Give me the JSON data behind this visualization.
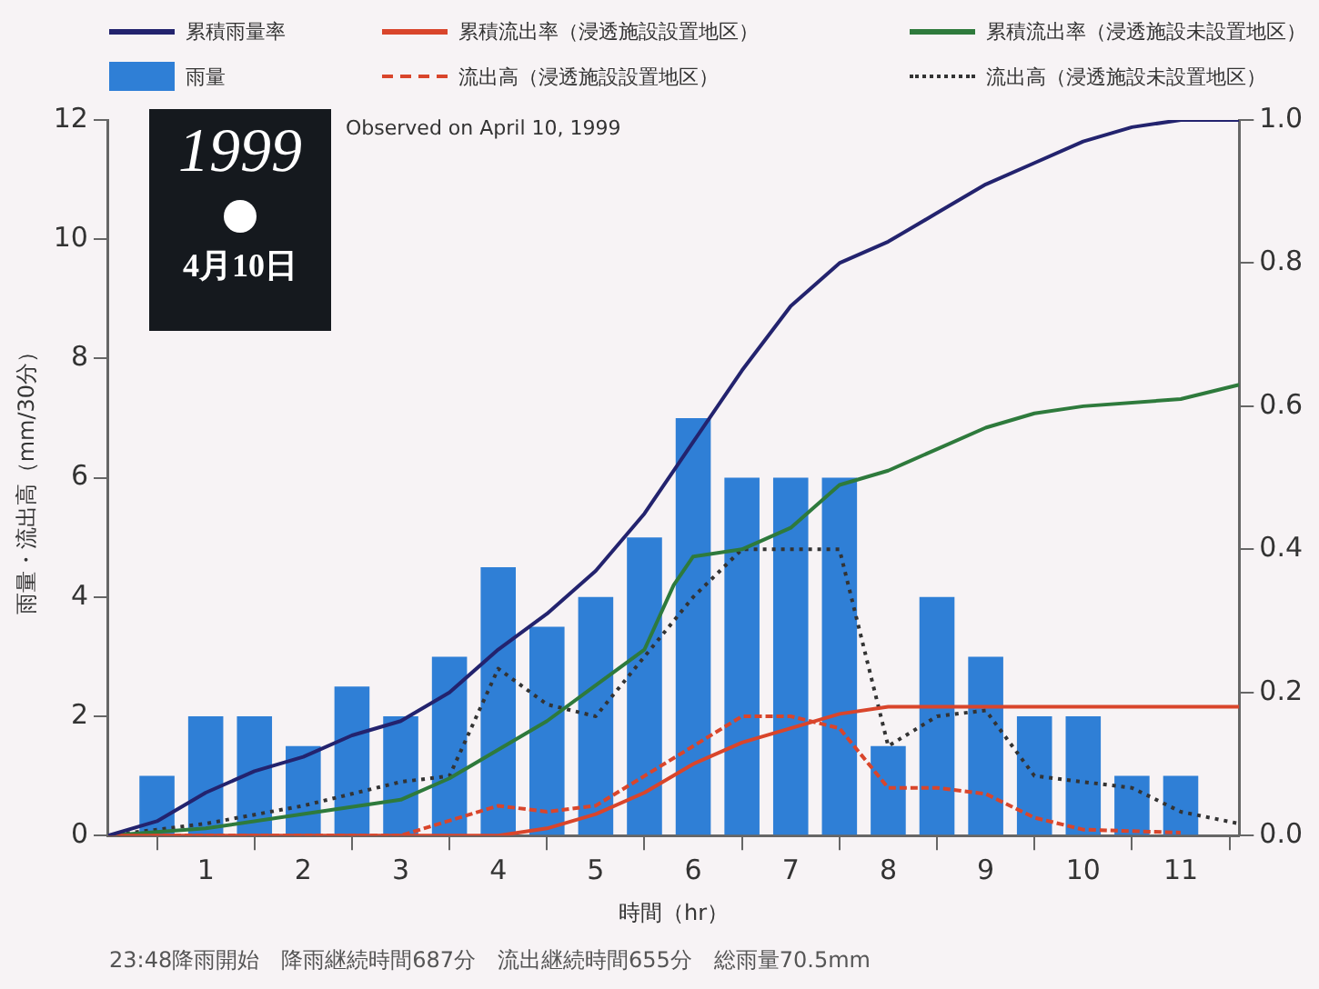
{
  "chart_data": {
    "type": "line",
    "xlabel": "時間（hr）",
    "ylabel": "雨量・流出高（mm/30分）",
    "annotations": [
      "1999",
      "4月10日",
      "Observed on April 10, 1999",
      "23:48降雨開始　降雨継続時間687分　流出継続時間655分　総雨量70.5mm"
    ],
    "xlim": [
      0,
      11.6
    ],
    "xticks": [
      1,
      2,
      3,
      4,
      5,
      6,
      7,
      8,
      9,
      10,
      11
    ],
    "ylim": [
      0,
      12
    ],
    "yticks": [
      0,
      2,
      4,
      6,
      8,
      10,
      12
    ],
    "y2lim": [
      0,
      1
    ],
    "y2ticks": [
      {
        "value": 0,
        "label": "0.0"
      },
      {
        "value": 0.2,
        "label": "0.2"
      },
      {
        "value": 0.4,
        "label": "0.4"
      },
      {
        "value": 0.6,
        "label": "0.6"
      },
      {
        "value": 0.8,
        "label": "0.8"
      },
      {
        "value": 1,
        "label": "1.0"
      }
    ],
    "grid": false,
    "legend": "top",
    "marker": "none",
    "series": [
      {
        "name": "累積雨量率",
        "axis": "y2",
        "color": "#23236e",
        "line_style": "solid",
        "x": [
          0,
          0.5,
          1,
          1.5,
          2,
          2.5,
          3,
          3.5,
          4,
          4.5,
          5,
          5.5,
          6,
          6.5,
          7,
          7.5,
          8,
          8.5,
          9,
          9.5,
          10,
          10.5,
          11,
          11.6
        ],
        "values": [
          0,
          0.02,
          0.06,
          0.09,
          0.11,
          0.14,
          0.16,
          0.2,
          0.26,
          0.31,
          0.37,
          0.45,
          0.55,
          0.65,
          0.74,
          0.8,
          0.83,
          0.87,
          0.91,
          0.94,
          0.97,
          0.99,
          1,
          1
        ]
      },
      {
        "name": "累積流出率（浸透施設設置地区）",
        "axis": "y2",
        "color": "#d9452b",
        "line_style": "solid",
        "x": [
          0,
          4,
          4.5,
          5,
          5.5,
          6,
          6.5,
          7,
          7.5,
          8,
          8.5,
          9,
          11.6
        ],
        "values": [
          0,
          0,
          0.01,
          0.03,
          0.06,
          0.1,
          0.13,
          0.15,
          0.17,
          0.18,
          0.18,
          0.18,
          0.18
        ]
      },
      {
        "name": "累積流出率（浸透施設未設置地区）",
        "axis": "y2",
        "color": "#2e7a3c",
        "line_style": "solid",
        "x": [
          0,
          1,
          2,
          3,
          3.5,
          4,
          4.5,
          5,
          5.5,
          5.8,
          6,
          6.5,
          7,
          7.5,
          8,
          8.5,
          9,
          9.5,
          10,
          11,
          11.6
        ],
        "values": [
          0,
          0.01,
          0.03,
          0.05,
          0.08,
          0.12,
          0.16,
          0.21,
          0.26,
          0.35,
          0.39,
          0.4,
          0.43,
          0.49,
          0.51,
          0.54,
          0.57,
          0.59,
          0.6,
          0.61,
          0.63
        ]
      },
      {
        "name": "雨量",
        "type": "bar",
        "color": "#2f7fd6",
        "x": [
          0.5,
          1,
          1.5,
          2,
          2.5,
          3,
          3.5,
          4,
          4.5,
          5,
          5.5,
          6,
          6.5,
          7,
          7.5,
          8,
          8.5,
          9,
          9.5,
          10,
          10.5,
          11
        ],
        "values": [
          1,
          2,
          2,
          1.5,
          2.5,
          2,
          3,
          4.5,
          3.5,
          4,
          5,
          7,
          6,
          6,
          6,
          1.5,
          4,
          3,
          2,
          2,
          1,
          1
        ]
      },
      {
        "name": "流出高（浸透施設設置地区）",
        "color": "#d9452b",
        "line_style": "dashed",
        "x": [
          0,
          3,
          4,
          4.5,
          5,
          5.5,
          6,
          6.5,
          7,
          7.5,
          8,
          8.5,
          9,
          9.5,
          10,
          11
        ],
        "values": [
          0,
          0,
          0.5,
          0.4,
          0.5,
          1,
          1.5,
          2,
          2,
          1.8,
          0.8,
          0.8,
          0.7,
          0.3,
          0.1,
          0.05
        ]
      },
      {
        "name": "流出高（浸透施設未設置地区）",
        "color": "#333333",
        "line_style": "dotted",
        "x": [
          0,
          1,
          2,
          2.5,
          3,
          3.5,
          4,
          4.5,
          5,
          5.5,
          6,
          6.5,
          7,
          7.5,
          8,
          8.5,
          9,
          9.5,
          10,
          10.5,
          11,
          11.6
        ],
        "values": [
          0,
          0.2,
          0.5,
          0.7,
          0.9,
          1,
          2.8,
          2.2,
          2,
          3,
          4,
          4.8,
          4.8,
          4.8,
          1.5,
          2,
          2.1,
          1,
          0.9,
          0.8,
          0.4,
          0.2
        ]
      }
    ]
  }
}
